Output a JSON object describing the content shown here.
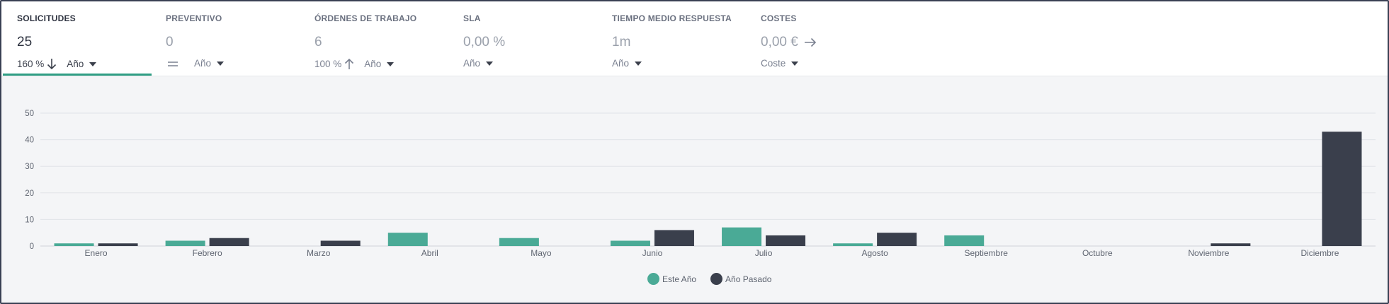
{
  "kpis": [
    {
      "title": "SOLICITUDES",
      "value": "25",
      "percent": "160 %",
      "trend": "down",
      "period": "Año",
      "active": true
    },
    {
      "title": "PREVENTIVO",
      "value": "0",
      "trend": "equal",
      "period": "Año",
      "active": false
    },
    {
      "title": "ÓRDENES DE TRABAJO",
      "value": "6",
      "percent": "100 %",
      "trend": "up",
      "period": "Año",
      "active": false
    },
    {
      "title": "SLA",
      "value": "0,00 %",
      "period": "Año",
      "active": false
    },
    {
      "title": "TIEMPO MEDIO RESPUESTA",
      "value": "1m",
      "period": "Año",
      "active": false
    },
    {
      "title": "COSTES",
      "value": "0,00 €",
      "period": "Coste",
      "active": false
    }
  ],
  "colors": {
    "accent": "#2f9e84",
    "this_year": "#4aaa96",
    "last_year": "#3a3f4c"
  },
  "chart_data": {
    "type": "bar",
    "categories": [
      "Enero",
      "Febrero",
      "Marzo",
      "Abril",
      "Mayo",
      "Junio",
      "Julio",
      "Agosto",
      "Septiembre",
      "Octubre",
      "Noviembre",
      "Diciembre"
    ],
    "series": [
      {
        "name": "Este Año",
        "values": [
          1,
          2,
          0,
          5,
          3,
          2,
          7,
          1,
          4,
          0,
          0,
          0
        ]
      },
      {
        "name": "Año Pasado",
        "values": [
          1,
          3,
          2,
          0,
          0,
          6,
          4,
          5,
          0,
          0,
          1,
          43
        ]
      }
    ],
    "yticks": [
      0,
      10,
      20,
      30,
      40,
      50
    ],
    "ylim": [
      0,
      50
    ],
    "grid": true,
    "legend_position": "bottom-center"
  }
}
